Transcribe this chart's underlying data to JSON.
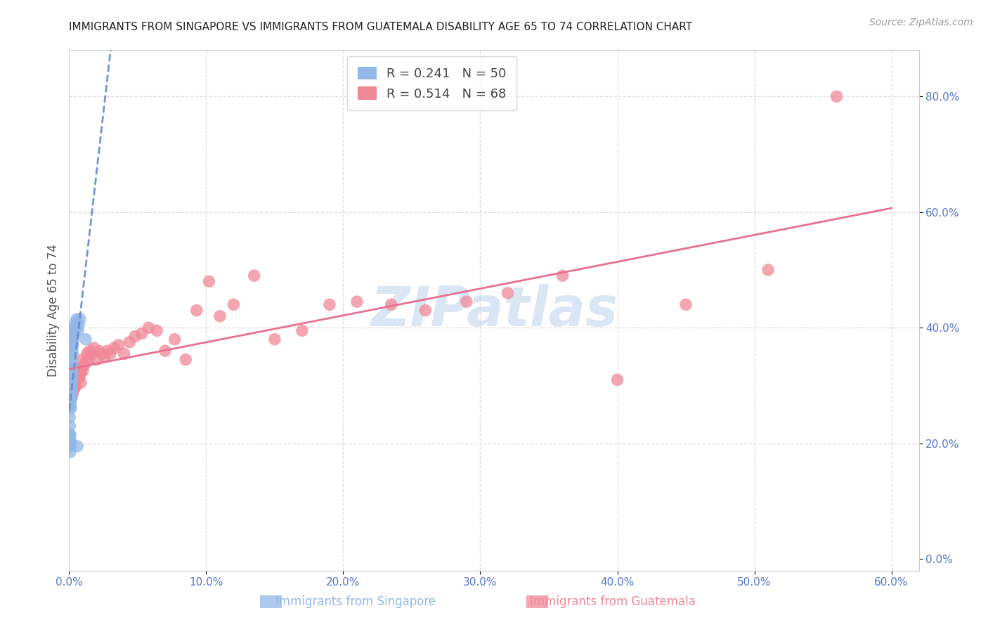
{
  "title": "IMMIGRANTS FROM SINGAPORE VS IMMIGRANTS FROM GUATEMALA DISABILITY AGE 65 TO 74 CORRELATION CHART",
  "source": "Source: ZipAtlas.com",
  "ylabel": "Disability Age 65 to 74",
  "xlim": [
    0.0,
    0.62
  ],
  "ylim": [
    -0.02,
    0.88
  ],
  "yticks": [
    0.0,
    0.2,
    0.4,
    0.6,
    0.8
  ],
  "xticks": [
    0.0,
    0.1,
    0.2,
    0.3,
    0.4,
    0.5,
    0.6
  ],
  "singapore_color": "#93b8e8",
  "guatemala_color": "#f08898",
  "singapore_trend_color": "#6688cc",
  "guatemala_trend_color": "#e87090",
  "singapore_R": 0.241,
  "singapore_N": 50,
  "guatemala_R": 0.514,
  "guatemala_N": 68,
  "watermark": "ZIPatlas",
  "background_color": "#ffffff",
  "grid_color": "#dddddd",
  "axis_label_color": "#5577cc",
  "singapore_x": [
    0.0002,
    0.0003,
    0.0004,
    0.0005,
    0.0005,
    0.0006,
    0.0006,
    0.0007,
    0.0007,
    0.0008,
    0.0008,
    0.0009,
    0.0009,
    0.001,
    0.001,
    0.001,
    0.0011,
    0.0011,
    0.0012,
    0.0012,
    0.0013,
    0.0013,
    0.0014,
    0.0015,
    0.0015,
    0.0016,
    0.0017,
    0.0018,
    0.0019,
    0.002,
    0.0021,
    0.0022,
    0.0023,
    0.0025,
    0.0027,
    0.0028,
    0.003,
    0.0032,
    0.0035,
    0.0038,
    0.004,
    0.0042,
    0.0045,
    0.005,
    0.0055,
    0.006,
    0.0065,
    0.007,
    0.008,
    0.012
  ],
  "singapore_y": [
    0.285,
    0.265,
    0.245,
    0.23,
    0.215,
    0.21,
    0.2,
    0.195,
    0.185,
    0.2,
    0.215,
    0.205,
    0.195,
    0.28,
    0.27,
    0.265,
    0.275,
    0.26,
    0.285,
    0.275,
    0.29,
    0.28,
    0.295,
    0.305,
    0.3,
    0.315,
    0.32,
    0.33,
    0.31,
    0.325,
    0.335,
    0.345,
    0.355,
    0.36,
    0.375,
    0.37,
    0.38,
    0.385,
    0.39,
    0.395,
    0.4,
    0.395,
    0.405,
    0.41,
    0.415,
    0.195,
    0.395,
    0.405,
    0.415,
    0.38
  ],
  "guatemala_x": [
    0.001,
    0.0012,
    0.0015,
    0.0018,
    0.002,
    0.0022,
    0.0025,
    0.0028,
    0.003,
    0.0032,
    0.0035,
    0.0038,
    0.004,
    0.0043,
    0.0046,
    0.005,
    0.0055,
    0.006,
    0.0065,
    0.007,
    0.0075,
    0.008,
    0.0085,
    0.009,
    0.0095,
    0.01,
    0.011,
    0.012,
    0.013,
    0.014,
    0.015,
    0.0165,
    0.018,
    0.02,
    0.022,
    0.024,
    0.026,
    0.028,
    0.03,
    0.033,
    0.036,
    0.04,
    0.044,
    0.048,
    0.053,
    0.058,
    0.064,
    0.07,
    0.077,
    0.085,
    0.093,
    0.102,
    0.11,
    0.12,
    0.135,
    0.15,
    0.17,
    0.19,
    0.21,
    0.235,
    0.26,
    0.29,
    0.32,
    0.36,
    0.4,
    0.45,
    0.51,
    0.56
  ],
  "guatemala_y": [
    0.28,
    0.29,
    0.3,
    0.31,
    0.28,
    0.295,
    0.285,
    0.3,
    0.31,
    0.295,
    0.305,
    0.315,
    0.295,
    0.32,
    0.315,
    0.3,
    0.32,
    0.31,
    0.325,
    0.33,
    0.315,
    0.32,
    0.305,
    0.33,
    0.345,
    0.325,
    0.335,
    0.34,
    0.355,
    0.345,
    0.36,
    0.355,
    0.365,
    0.345,
    0.36,
    0.355,
    0.35,
    0.36,
    0.355,
    0.365,
    0.37,
    0.355,
    0.375,
    0.385,
    0.39,
    0.4,
    0.395,
    0.36,
    0.38,
    0.345,
    0.43,
    0.48,
    0.42,
    0.44,
    0.49,
    0.38,
    0.395,
    0.44,
    0.445,
    0.44,
    0.43,
    0.445,
    0.46,
    0.49,
    0.31,
    0.44,
    0.5,
    0.8
  ]
}
